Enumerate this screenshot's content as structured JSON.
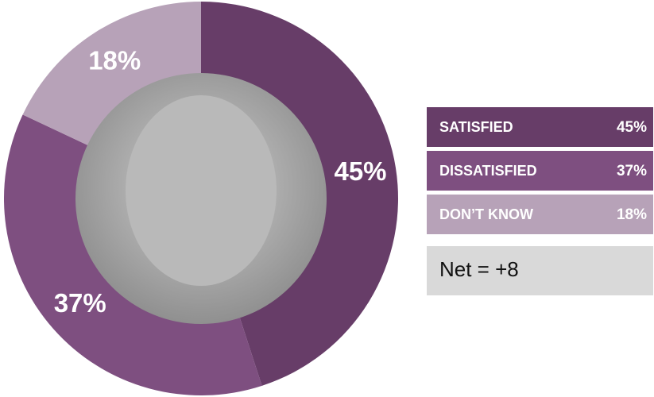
{
  "chart_data": {
    "type": "donut",
    "categories": [
      "SATISFIED",
      "DISSATISFIED",
      "DON’T KNOW"
    ],
    "values": [
      45,
      37,
      18
    ],
    "value_labels": [
      "45%",
      "37%",
      "18%"
    ],
    "colors": [
      "#673d68",
      "#7e4f80",
      "#b7a2b8"
    ],
    "annotation": "Net = +8"
  }
}
